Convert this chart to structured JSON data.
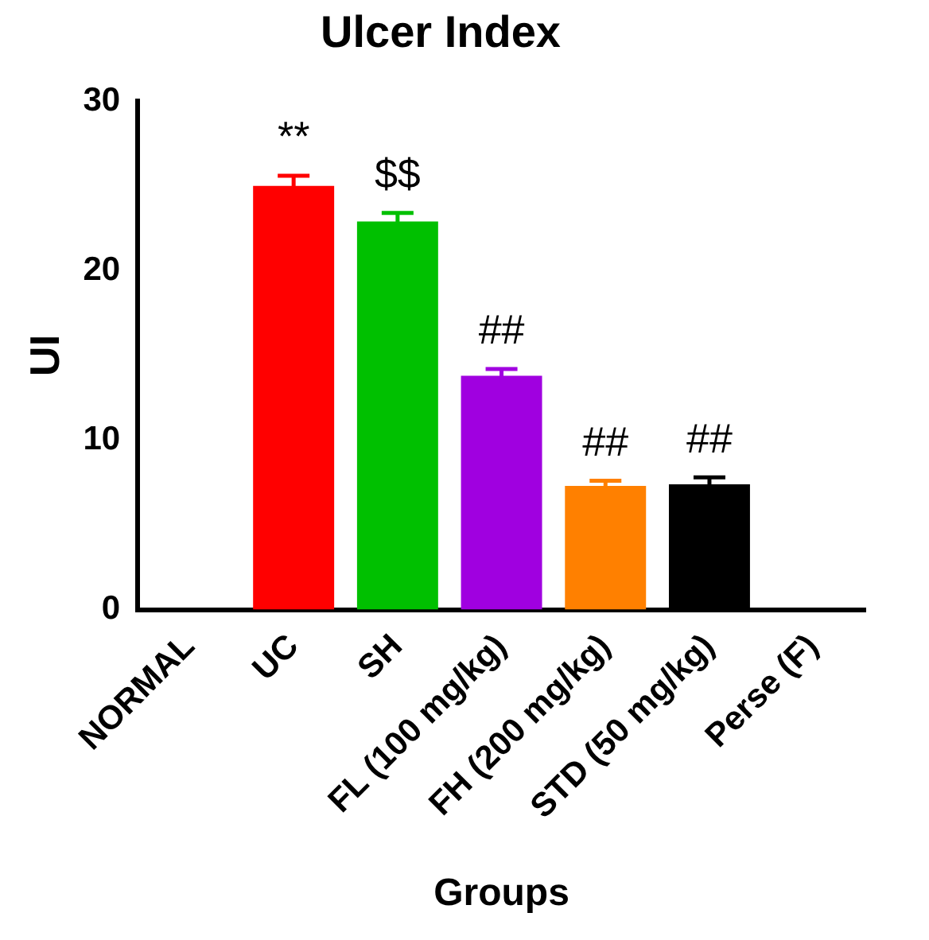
{
  "chart_data": {
    "type": "bar",
    "title": "Ulcer Index",
    "xlabel": "Groups",
    "ylabel": "UI",
    "categories": [
      "NORMAL",
      "UC",
      "SH",
      "FL (100 mg/kg)",
      "FH (200 mg/kg)",
      "STD (50 mg/kg)",
      "Perse (F)"
    ],
    "values": [
      0,
      25.0,
      22.9,
      13.8,
      7.3,
      7.4,
      0
    ],
    "errors": [
      null,
      0.6,
      0.5,
      0.4,
      0.3,
      0.4,
      null
    ],
    "colors": [
      "#000000",
      "#ff0000",
      "#00c000",
      "#a000e0",
      "#ff8000",
      "#000000",
      "#000000"
    ],
    "ylim": [
      0,
      30
    ],
    "yticks": [
      0,
      10,
      20,
      30
    ],
    "grid": false,
    "legend": false,
    "annotations": [
      "**",
      "$$",
      "##",
      "##",
      "##"
    ]
  }
}
